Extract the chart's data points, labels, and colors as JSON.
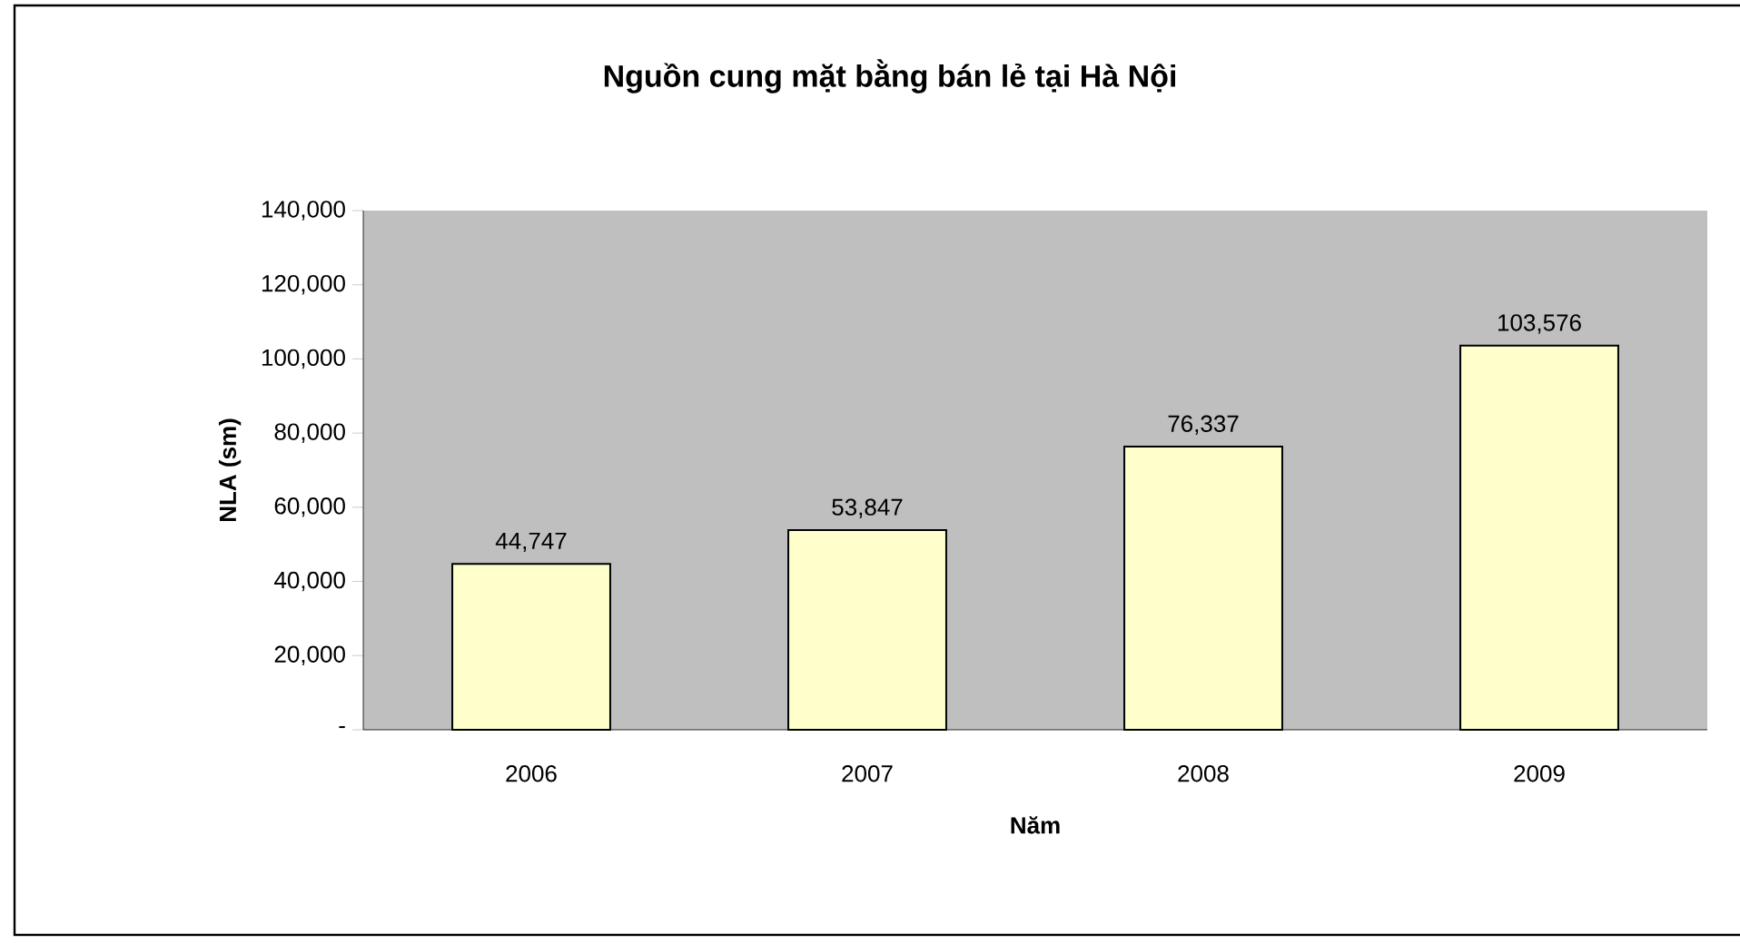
{
  "chart_data": {
    "type": "bar",
    "title": "Nguồn cung mặt bằng bán lẻ tại Hà Nội",
    "xlabel": "Năm",
    "ylabel": "NLA (sm)",
    "categories": [
      "2006",
      "2007",
      "2008",
      "2009"
    ],
    "values": [
      44747,
      53847,
      76337,
      103576
    ],
    "value_labels": [
      "44,747",
      "53,847",
      "76,337",
      "103,576"
    ],
    "color": "#ffffcc",
    "ylim": [
      0,
      140000
    ],
    "yticks": [
      {
        "value": 0,
        "label": "-"
      },
      {
        "value": 20000,
        "label": "20,000"
      },
      {
        "value": 40000,
        "label": "40,000"
      },
      {
        "value": 60000,
        "label": "60,000"
      },
      {
        "value": 80000,
        "label": "80,000"
      },
      {
        "value": 100000,
        "label": "100,000"
      },
      {
        "value": 120000,
        "label": "120,000"
      },
      {
        "value": 140000,
        "label": "140,000"
      }
    ]
  }
}
